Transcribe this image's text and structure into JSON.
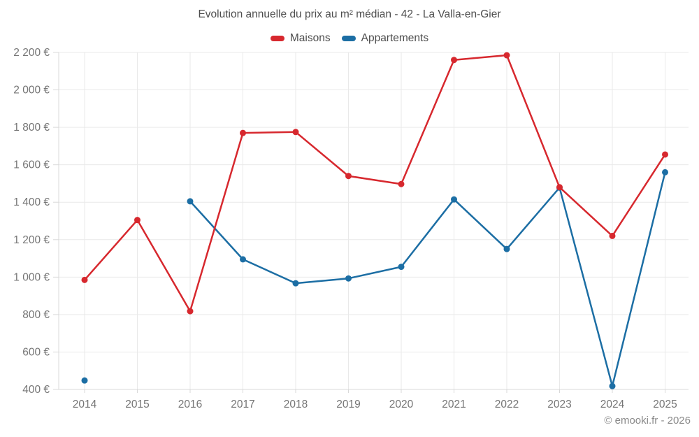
{
  "footer": {
    "copyright": "© emooki.fr - 2026"
  },
  "chart_data": {
    "type": "line",
    "title": "Evolution annuelle du prix au m² médian - 42 - La Valla-en-Gier",
    "x": [
      "2014",
      "2015",
      "2016",
      "2017",
      "2018",
      "2019",
      "2020",
      "2021",
      "2022",
      "2023",
      "2024",
      "2025"
    ],
    "series": [
      {
        "name": "Maisons",
        "color": "#d7282e",
        "values": [
          985,
          1305,
          818,
          1770,
          1775,
          1540,
          1497,
          2160,
          2185,
          1480,
          1220,
          1655
        ]
      },
      {
        "name": "Appartements",
        "color": "#1c6ea4",
        "values": [
          448,
          null,
          1405,
          1095,
          967,
          993,
          1055,
          1415,
          1150,
          1478,
          418,
          1560
        ]
      }
    ],
    "ylim": [
      400,
      2200
    ],
    "y_ticks": [
      400,
      600,
      800,
      1000,
      1200,
      1400,
      1600,
      1800,
      2000,
      2200
    ],
    "y_tick_labels": [
      "400 €",
      "600 €",
      "800 €",
      "1 000 €",
      "1 200 €",
      "1 400 €",
      "1 600 €",
      "1 800 €",
      "2 000 €",
      "2 200 €"
    ],
    "grid": true,
    "legend_position": "top",
    "marker": "circle",
    "grid_color": "#e9e9e9",
    "axis_color": "#d9d9d9"
  }
}
